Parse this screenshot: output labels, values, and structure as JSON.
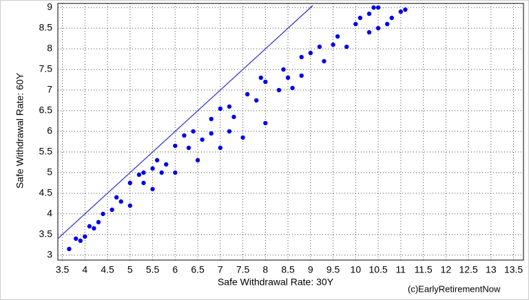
{
  "chart_data": {
    "type": "scatter",
    "x_label": "Safe Withdrawal Rate: 30Y",
    "y_label": "Safe Withdrawal Rate: 60Y",
    "annotation": "(c)EarlyRetirementNow",
    "color": "#0000ee",
    "grid": true,
    "x": [
      3.8,
      4.1,
      4.4,
      4.7,
      5.0,
      5.3,
      5.6,
      6.0,
      6.4,
      6.8,
      7.2,
      7.6,
      8.0,
      8.4,
      8.8,
      9.2,
      9.6,
      10.0,
      10.3,
      10.5,
      4.3,
      4.8,
      5.3,
      5.8,
      6.3,
      6.8,
      7.3,
      7.8,
      8.3,
      8.8,
      9.3,
      9.8,
      10.3,
      10.7,
      5.0,
      5.5,
      6.0,
      6.5,
      7.0,
      7.5,
      8.0,
      10.5,
      10.8,
      11.1,
      3.65,
      3.9,
      4.0,
      4.2,
      4.6,
      5.2,
      5.5,
      6.2,
      7.0,
      7.9,
      8.5,
      9.0,
      9.5,
      10.1,
      10.4,
      11.0,
      8.6,
      7.2,
      6.6,
      5.7
    ],
    "values": [
      3.4,
      3.7,
      4.0,
      4.4,
      4.75,
      5.0,
      5.3,
      5.65,
      6.0,
      6.3,
      6.6,
      6.9,
      7.2,
      7.5,
      7.8,
      8.05,
      8.3,
      8.6,
      8.85,
      9.0,
      3.8,
      4.3,
      4.75,
      5.2,
      5.6,
      5.95,
      6.35,
      6.75,
      7.0,
      7.35,
      7.7,
      8.05,
      8.4,
      8.6,
      4.2,
      4.6,
      5.0,
      5.3,
      5.6,
      5.85,
      6.2,
      8.5,
      8.75,
      8.95,
      3.15,
      3.35,
      3.45,
      3.65,
      4.1,
      4.95,
      5.1,
      5.9,
      6.55,
      7.3,
      7.3,
      7.9,
      8.1,
      8.75,
      9.0,
      8.9,
      7.05,
      6.0,
      5.8,
      5.0
    ],
    "reference_line": {
      "x": [
        3.4,
        9.05
      ],
      "y": [
        3.4,
        9.05
      ],
      "color": "#2a2ad8"
    },
    "xlim": [
      3.4,
      13.72
    ],
    "ylim": [
      2.88,
      9.1
    ],
    "xticks": [
      3.5,
      4,
      4.5,
      5,
      5.5,
      6,
      6.5,
      7,
      7.5,
      8,
      8.5,
      9,
      9.5,
      10,
      10.5,
      11,
      11.5,
      12,
      12.5,
      13,
      13.5
    ],
    "yticks": [
      3,
      3.5,
      4,
      4.5,
      5,
      5.5,
      6,
      6.5,
      7,
      7.5,
      8,
      8.5,
      9
    ]
  }
}
